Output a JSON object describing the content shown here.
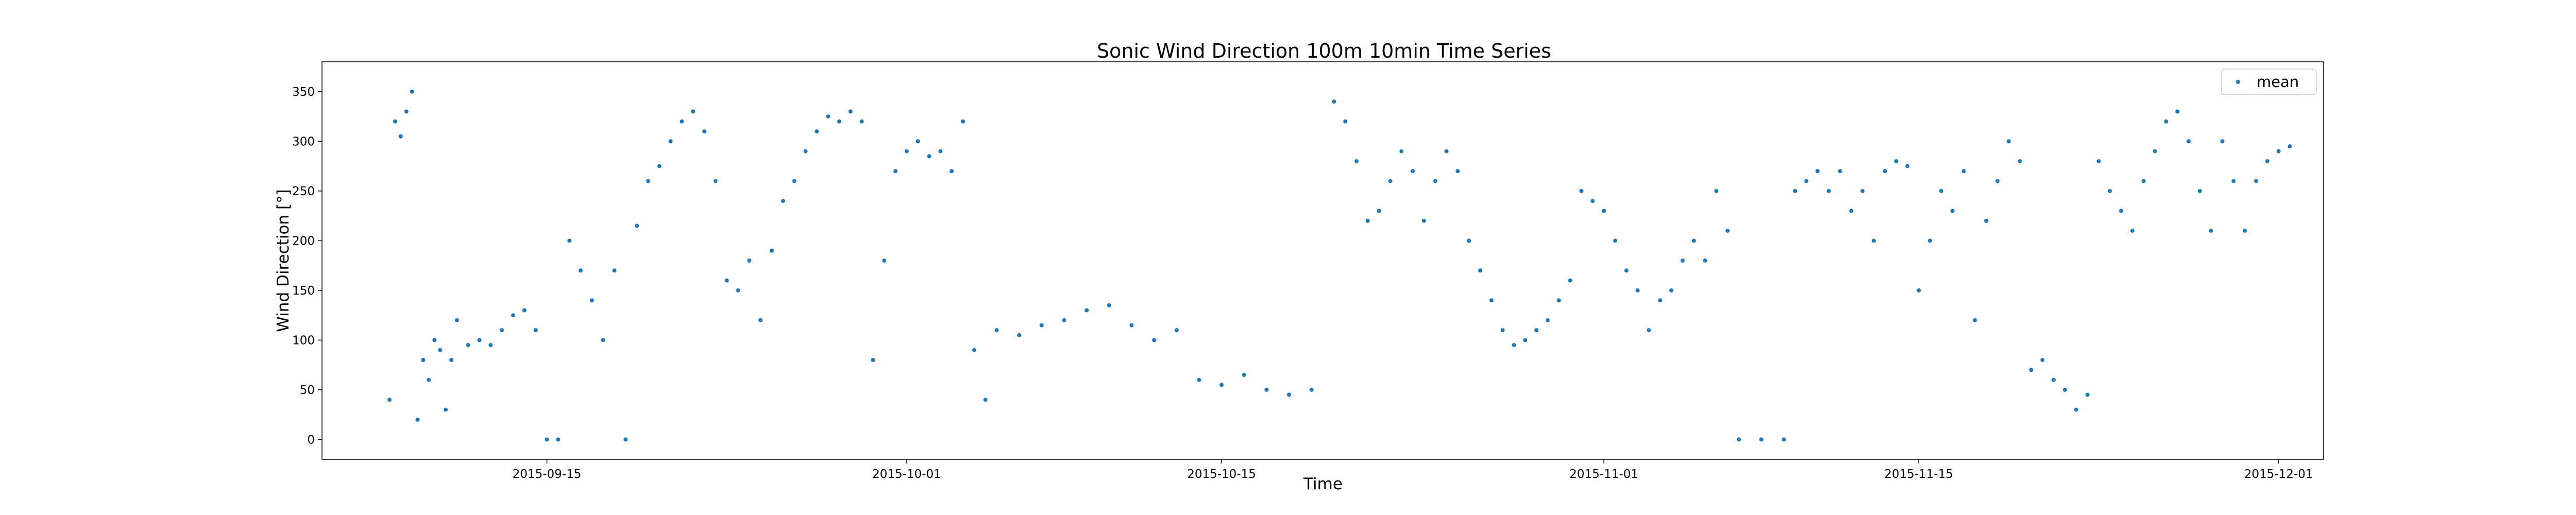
{
  "chart_data": {
    "type": "scatter",
    "title": "Sonic Wind Direction 100m 10min Time Series",
    "xlabel": "Time",
    "ylabel": "Wind Direction [°]",
    "xlim": [
      "2015-09-05",
      "2015-12-03"
    ],
    "ylim": [
      -20,
      380
    ],
    "x_ticks": [
      "2015-09-15",
      "2015-10-01",
      "2015-10-15",
      "2015-11-01",
      "2015-11-15",
      "2015-12-01"
    ],
    "y_ticks": [
      0,
      50,
      100,
      150,
      200,
      250,
      300,
      350
    ],
    "legend_position": "top-right",
    "grid": false,
    "series": [
      {
        "name": "mean",
        "color": "#1f77b4",
        "points": [
          [
            "2015-09-08T00:00",
            40
          ],
          [
            "2015-09-08T06:00",
            320
          ],
          [
            "2015-09-08T12:00",
            305
          ],
          [
            "2015-09-08T18:00",
            330
          ],
          [
            "2015-09-09T00:00",
            350
          ],
          [
            "2015-09-09T06:00",
            20
          ],
          [
            "2015-09-09T12:00",
            80
          ],
          [
            "2015-09-09T18:00",
            60
          ],
          [
            "2015-09-10T00:00",
            100
          ],
          [
            "2015-09-10T06:00",
            90
          ],
          [
            "2015-09-10T12:00",
            30
          ],
          [
            "2015-09-10T18:00",
            80
          ],
          [
            "2015-09-11T00:00",
            120
          ],
          [
            "2015-09-11T12:00",
            95
          ],
          [
            "2015-09-12T00:00",
            100
          ],
          [
            "2015-09-12T12:00",
            95
          ],
          [
            "2015-09-13T00:00",
            110
          ],
          [
            "2015-09-13T12:00",
            125
          ],
          [
            "2015-09-14T00:00",
            130
          ],
          [
            "2015-09-14T12:00",
            110
          ],
          [
            "2015-09-15T00:00",
            0
          ],
          [
            "2015-09-15T12:00",
            0
          ],
          [
            "2015-09-16T00:00",
            200
          ],
          [
            "2015-09-16T12:00",
            170
          ],
          [
            "2015-09-17T00:00",
            140
          ],
          [
            "2015-09-17T12:00",
            100
          ],
          [
            "2015-09-18T00:00",
            170
          ],
          [
            "2015-09-18T12:00",
            0
          ],
          [
            "2015-09-19T00:00",
            215
          ],
          [
            "2015-09-19T12:00",
            260
          ],
          [
            "2015-09-20T00:00",
            275
          ],
          [
            "2015-09-20T12:00",
            300
          ],
          [
            "2015-09-21T00:00",
            320
          ],
          [
            "2015-09-21T12:00",
            330
          ],
          [
            "2015-09-22T00:00",
            310
          ],
          [
            "2015-09-22T12:00",
            260
          ],
          [
            "2015-09-23T00:00",
            160
          ],
          [
            "2015-09-23T12:00",
            150
          ],
          [
            "2015-09-24T00:00",
            180
          ],
          [
            "2015-09-24T12:00",
            120
          ],
          [
            "2015-09-25T00:00",
            190
          ],
          [
            "2015-09-25T12:00",
            240
          ],
          [
            "2015-09-26T00:00",
            260
          ],
          [
            "2015-09-26T12:00",
            290
          ],
          [
            "2015-09-27T00:00",
            310
          ],
          [
            "2015-09-27T12:00",
            325
          ],
          [
            "2015-09-28T00:00",
            320
          ],
          [
            "2015-09-28T12:00",
            330
          ],
          [
            "2015-09-29T00:00",
            320
          ],
          [
            "2015-09-29T12:00",
            80
          ],
          [
            "2015-09-30T00:00",
            180
          ],
          [
            "2015-09-30T12:00",
            270
          ],
          [
            "2015-10-01T00:00",
            290
          ],
          [
            "2015-10-01T12:00",
            300
          ],
          [
            "2015-10-02T00:00",
            285
          ],
          [
            "2015-10-02T12:00",
            290
          ],
          [
            "2015-10-03T00:00",
            270
          ],
          [
            "2015-10-03T12:00",
            320
          ],
          [
            "2015-10-04T00:00",
            90
          ],
          [
            "2015-10-04T12:00",
            40
          ],
          [
            "2015-10-05T00:00",
            110
          ],
          [
            "2015-10-06T00:00",
            105
          ],
          [
            "2015-10-07T00:00",
            115
          ],
          [
            "2015-10-08T00:00",
            120
          ],
          [
            "2015-10-09T00:00",
            130
          ],
          [
            "2015-10-10T00:00",
            135
          ],
          [
            "2015-10-11T00:00",
            115
          ],
          [
            "2015-10-12T00:00",
            100
          ],
          [
            "2015-10-13T00:00",
            110
          ],
          [
            "2015-10-14T00:00",
            60
          ],
          [
            "2015-10-15T00:00",
            55
          ],
          [
            "2015-10-16T00:00",
            65
          ],
          [
            "2015-10-17T00:00",
            50
          ],
          [
            "2015-10-18T00:00",
            45
          ],
          [
            "2015-10-19T00:00",
            50
          ],
          [
            "2015-10-20T00:00",
            340
          ],
          [
            "2015-10-20T12:00",
            320
          ],
          [
            "2015-10-21T00:00",
            280
          ],
          [
            "2015-10-21T12:00",
            220
          ],
          [
            "2015-10-22T00:00",
            230
          ],
          [
            "2015-10-22T12:00",
            260
          ],
          [
            "2015-10-23T00:00",
            290
          ],
          [
            "2015-10-23T12:00",
            270
          ],
          [
            "2015-10-24T00:00",
            220
          ],
          [
            "2015-10-24T12:00",
            260
          ],
          [
            "2015-10-25T00:00",
            290
          ],
          [
            "2015-10-25T12:00",
            270
          ],
          [
            "2015-10-26T00:00",
            200
          ],
          [
            "2015-10-26T12:00",
            170
          ],
          [
            "2015-10-27T00:00",
            140
          ],
          [
            "2015-10-27T12:00",
            110
          ],
          [
            "2015-10-28T00:00",
            95
          ],
          [
            "2015-10-28T12:00",
            100
          ],
          [
            "2015-10-29T00:00",
            110
          ],
          [
            "2015-10-29T12:00",
            120
          ],
          [
            "2015-10-30T00:00",
            140
          ],
          [
            "2015-10-30T12:00",
            160
          ],
          [
            "2015-10-31T00:00",
            250
          ],
          [
            "2015-10-31T12:00",
            240
          ],
          [
            "2015-11-01T00:00",
            230
          ],
          [
            "2015-11-01T12:00",
            200
          ],
          [
            "2015-11-02T00:00",
            170
          ],
          [
            "2015-11-02T12:00",
            150
          ],
          [
            "2015-11-03T00:00",
            110
          ],
          [
            "2015-11-03T12:00",
            140
          ],
          [
            "2015-11-04T00:00",
            150
          ],
          [
            "2015-11-04T12:00",
            180
          ],
          [
            "2015-11-05T00:00",
            200
          ],
          [
            "2015-11-05T12:00",
            180
          ],
          [
            "2015-11-06T00:00",
            250
          ],
          [
            "2015-11-06T12:00",
            210
          ],
          [
            "2015-11-07T00:00",
            0
          ],
          [
            "2015-11-08T00:00",
            0
          ],
          [
            "2015-11-09T00:00",
            0
          ],
          [
            "2015-11-09T12:00",
            250
          ],
          [
            "2015-11-10T00:00",
            260
          ],
          [
            "2015-11-10T12:00",
            270
          ],
          [
            "2015-11-11T00:00",
            250
          ],
          [
            "2015-11-11T12:00",
            270
          ],
          [
            "2015-11-12T00:00",
            230
          ],
          [
            "2015-11-12T12:00",
            250
          ],
          [
            "2015-11-13T00:00",
            200
          ],
          [
            "2015-11-13T12:00",
            270
          ],
          [
            "2015-11-14T00:00",
            280
          ],
          [
            "2015-11-14T12:00",
            275
          ],
          [
            "2015-11-15T00:00",
            150
          ],
          [
            "2015-11-15T12:00",
            200
          ],
          [
            "2015-11-16T00:00",
            250
          ],
          [
            "2015-11-16T12:00",
            230
          ],
          [
            "2015-11-17T00:00",
            270
          ],
          [
            "2015-11-17T12:00",
            120
          ],
          [
            "2015-11-18T00:00",
            220
          ],
          [
            "2015-11-18T12:00",
            260
          ],
          [
            "2015-11-19T00:00",
            300
          ],
          [
            "2015-11-19T12:00",
            280
          ],
          [
            "2015-11-20T00:00",
            70
          ],
          [
            "2015-11-20T12:00",
            80
          ],
          [
            "2015-11-21T00:00",
            60
          ],
          [
            "2015-11-21T12:00",
            50
          ],
          [
            "2015-11-22T00:00",
            30
          ],
          [
            "2015-11-22T12:00",
            45
          ],
          [
            "2015-11-23T00:00",
            280
          ],
          [
            "2015-11-23T12:00",
            250
          ],
          [
            "2015-11-24T00:00",
            230
          ],
          [
            "2015-11-24T12:00",
            210
          ],
          [
            "2015-11-25T00:00",
            260
          ],
          [
            "2015-11-25T12:00",
            290
          ],
          [
            "2015-11-26T00:00",
            320
          ],
          [
            "2015-11-26T12:00",
            330
          ],
          [
            "2015-11-27T00:00",
            300
          ],
          [
            "2015-11-27T12:00",
            250
          ],
          [
            "2015-11-28T00:00",
            210
          ],
          [
            "2015-11-28T12:00",
            300
          ],
          [
            "2015-11-29T00:00",
            260
          ],
          [
            "2015-11-29T12:00",
            210
          ],
          [
            "2015-11-30T00:00",
            260
          ],
          [
            "2015-11-30T12:00",
            280
          ],
          [
            "2015-12-01T00:00",
            290
          ],
          [
            "2015-12-01T12:00",
            295
          ]
        ]
      }
    ]
  }
}
